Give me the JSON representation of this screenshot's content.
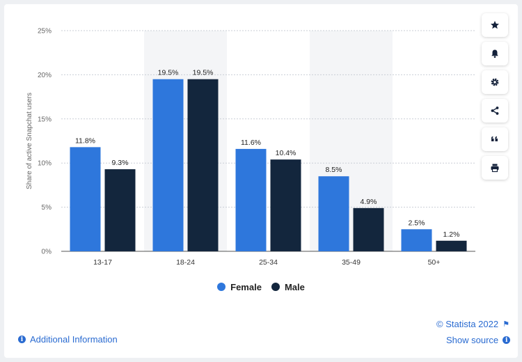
{
  "colors": {
    "female": "#2e77dc",
    "male": "#13263d",
    "highlight": "#f4f5f7",
    "grid": "#c9ced6",
    "axis_text": "#666666"
  },
  "side_buttons": [
    {
      "name": "favorite-star-icon",
      "icon": "star"
    },
    {
      "name": "notification-bell-icon",
      "icon": "bell"
    },
    {
      "name": "settings-gear-icon",
      "icon": "gear"
    },
    {
      "name": "share-icon",
      "icon": "share"
    },
    {
      "name": "cite-quote-icon",
      "icon": "quote"
    },
    {
      "name": "print-icon",
      "icon": "print"
    }
  ],
  "legend": {
    "female": "Female",
    "male": "Male"
  },
  "footer": {
    "copyright": "© Statista 2022",
    "additional_info": "Additional Information",
    "show_source": "Show source"
  },
  "chart_data": {
    "type": "bar",
    "ylabel": "Share of active Snapchat users",
    "xlabel": "",
    "ylim": [
      0,
      25
    ],
    "yticks": [
      0,
      5,
      10,
      15,
      20,
      25
    ],
    "ytick_labels": [
      "0%",
      "5%",
      "10%",
      "15%",
      "20%",
      "25%"
    ],
    "categories": [
      "13-17",
      "18-24",
      "25-34",
      "35-49",
      "50+"
    ],
    "highlighted_categories": [
      1,
      3
    ],
    "grid": true,
    "legend_position": "bottom",
    "series": [
      {
        "name": "Female",
        "values": [
          11.8,
          19.5,
          11.6,
          8.5,
          2.5
        ],
        "labels": [
          "11.8%",
          "19.5%",
          "11.6%",
          "8.5%",
          "2.5%"
        ]
      },
      {
        "name": "Male",
        "values": [
          9.3,
          19.5,
          10.4,
          4.9,
          1.2
        ],
        "labels": [
          "9.3%",
          "19.5%",
          "10.4%",
          "4.9%",
          "1.2%"
        ]
      }
    ]
  }
}
